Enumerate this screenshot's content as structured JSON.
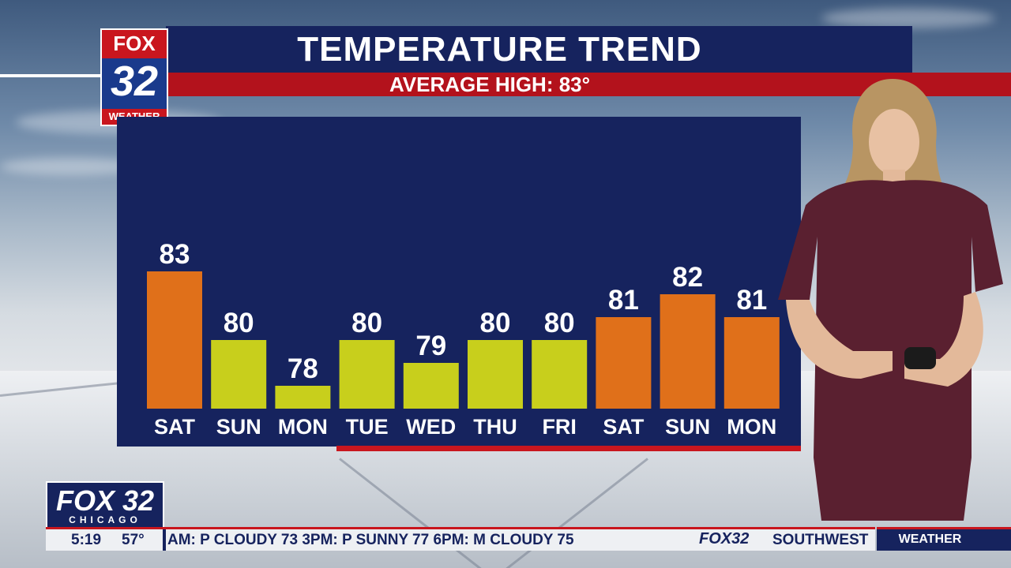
{
  "broadcast": {
    "logo_top": {
      "brand": "FOX",
      "channel": "32",
      "segment": "WEATHER"
    },
    "logo_bottom": {
      "brand": "FOX 32",
      "city": "CHICAGO"
    },
    "ticker": {
      "time": "5:19",
      "temp": "57°",
      "messages": "AM: P CLOUDY 73   3PM: P SUNNY 77   6PM: M CLOUDY 75",
      "brand": "FOX32",
      "messages_after": "SOUTHWEST"
    },
    "section_tag": "WEATHER"
  },
  "colors": {
    "panel": "#16235e",
    "accent_red": "#c9161e",
    "warm_bar": "#e0701a",
    "mild_bar": "#c8cf1c"
  },
  "chart_data": {
    "type": "bar",
    "title": "TEMPERATURE TREND",
    "subtitle": "AVERAGE HIGH: 83°",
    "categories": [
      "SAT",
      "SUN",
      "MON",
      "TUE",
      "WED",
      "THU",
      "FRI",
      "SAT",
      "SUN",
      "MON"
    ],
    "values": [
      83,
      80,
      78,
      80,
      79,
      80,
      80,
      81,
      82,
      81
    ],
    "bar_colors": [
      "warm",
      "mild",
      "mild",
      "mild",
      "mild",
      "mild",
      "mild",
      "warm",
      "warm",
      "warm"
    ],
    "ylim": [
      77,
      87
    ],
    "grid": false,
    "legend": "none"
  }
}
